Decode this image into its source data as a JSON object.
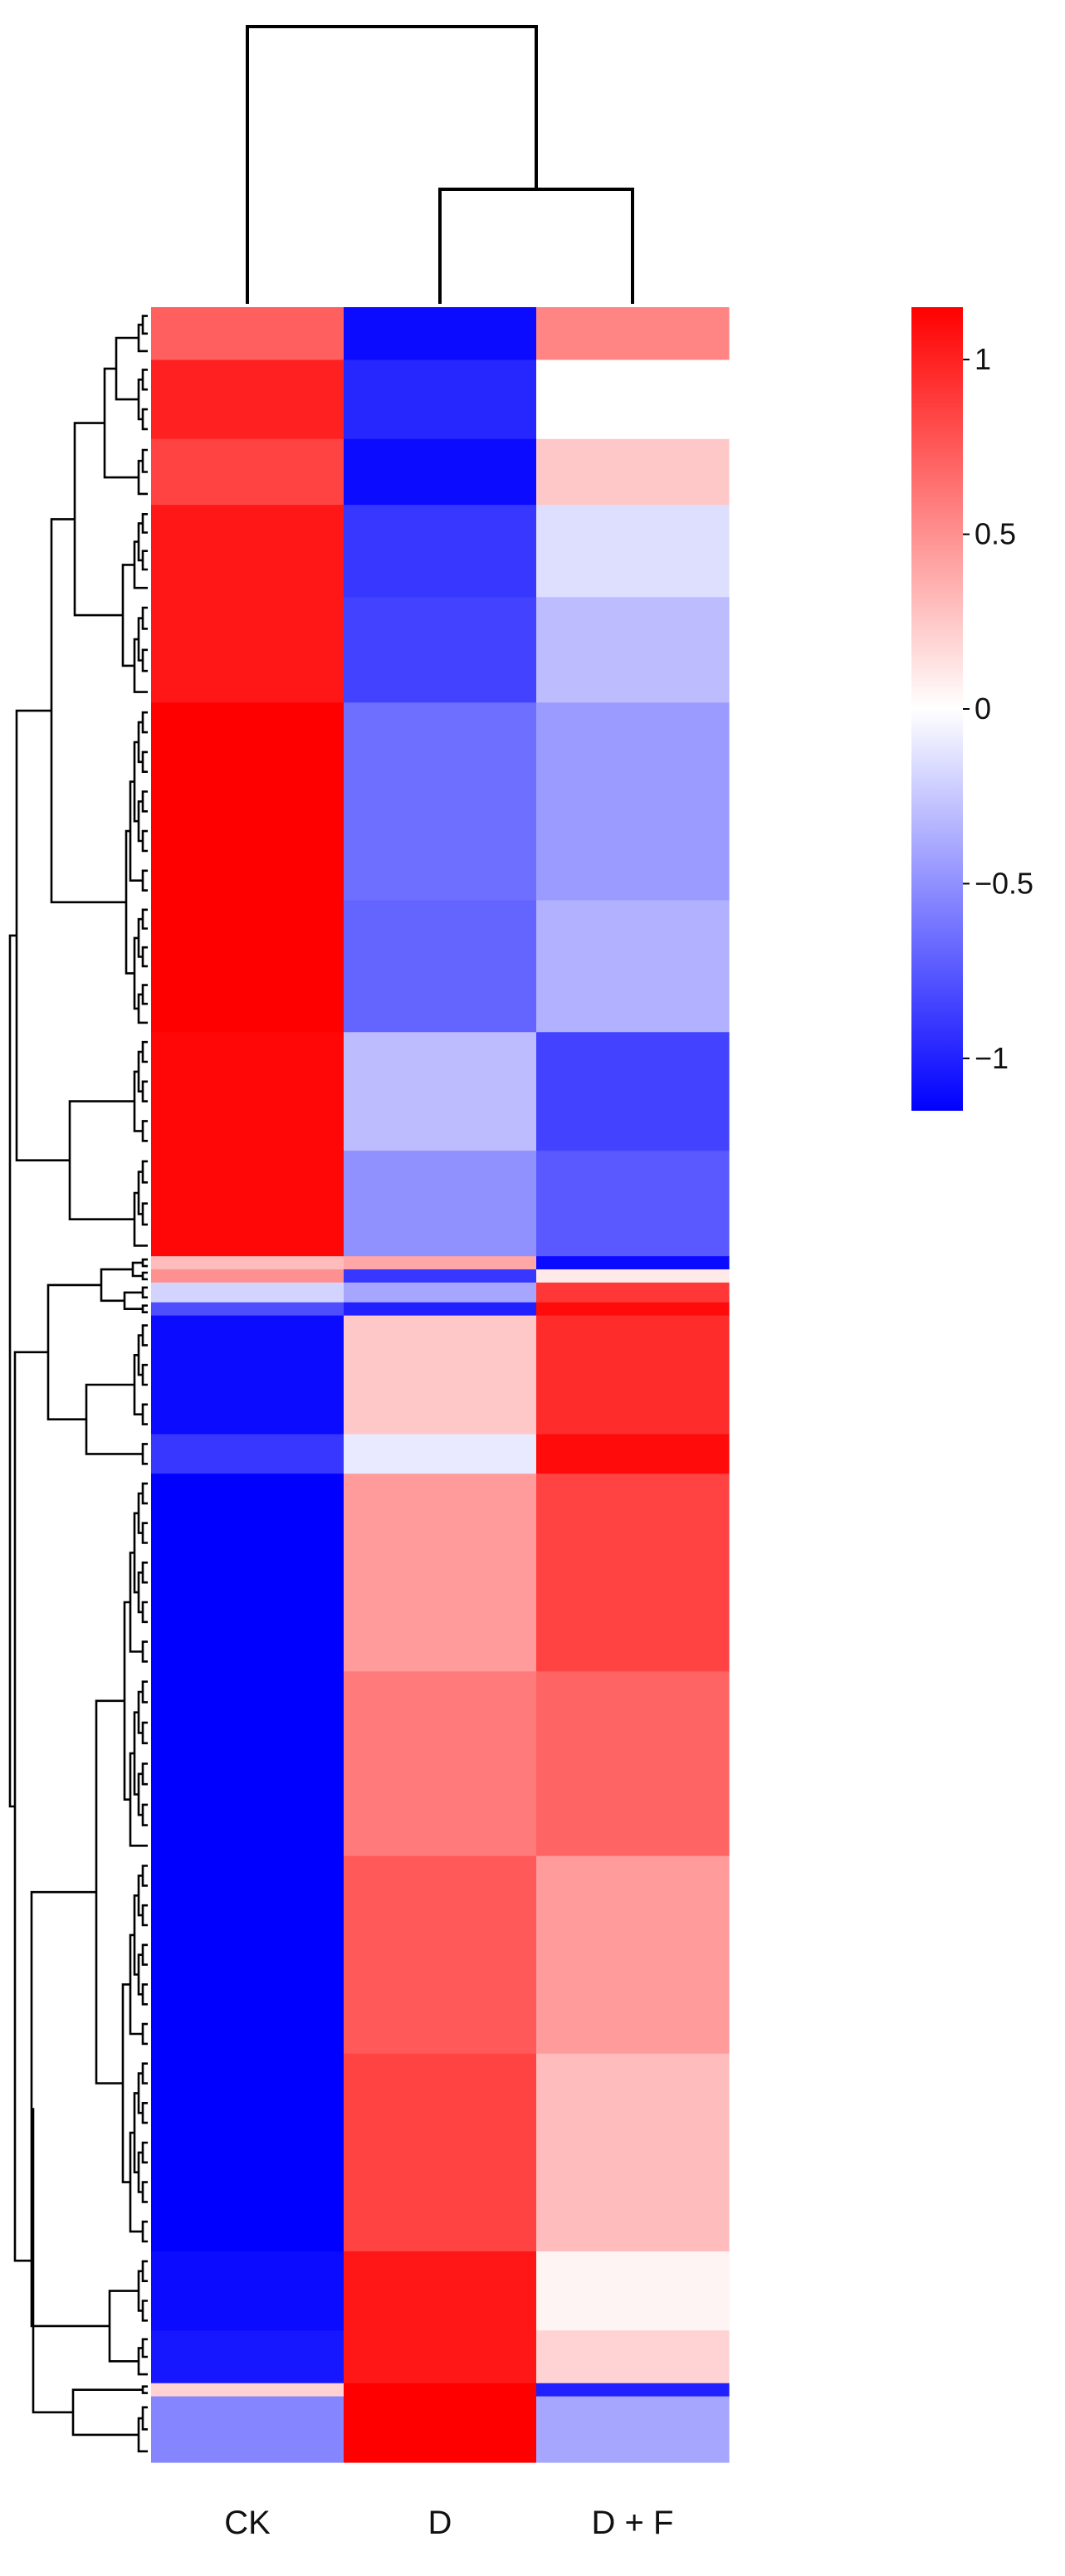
{
  "chart_data": {
    "type": "heatmap",
    "title": "",
    "xlabel": "",
    "ylabel": "",
    "columns": [
      "CK",
      "D",
      "D + F"
    ],
    "column_order": [
      "CK",
      "D",
      "D + F"
    ],
    "column_dendrogram": {
      "merges": [
        [
          "D",
          "D + F"
        ],
        [
          "CK",
          "D|D + F"
        ]
      ]
    },
    "row_dendrogram": true,
    "colorbar": {
      "min": -1.15,
      "max": 1.15,
      "ticks": [
        1,
        0.5,
        0,
        -0.5,
        -1
      ],
      "tick_labels": [
        "1",
        "0.5",
        "0",
        "−0.5",
        "−1"
      ],
      "colors": {
        "low": "#0000ff",
        "mid": "#ffffff",
        "high": "#ff0000"
      }
    },
    "row_blocks": [
      {
        "rows": 8,
        "values": [
          0.72,
          -1.1,
          0.55
        ]
      },
      {
        "rows": 12,
        "values": [
          1.0,
          -0.98,
          0.0
        ]
      },
      {
        "rows": 10,
        "values": [
          0.85,
          -1.1,
          0.25
        ]
      },
      {
        "rows": 14,
        "values": [
          1.05,
          -0.9,
          -0.15
        ]
      },
      {
        "rows": 16,
        "values": [
          1.05,
          -0.85,
          -0.3
        ]
      },
      {
        "rows": 30,
        "values": [
          1.15,
          -0.65,
          -0.45
        ]
      },
      {
        "rows": 20,
        "values": [
          1.15,
          -0.7,
          -0.35
        ]
      },
      {
        "rows": 18,
        "values": [
          1.12,
          -0.3,
          -0.85
        ]
      },
      {
        "rows": 16,
        "values": [
          1.12,
          -0.5,
          -0.75
        ]
      },
      {
        "rows": 2,
        "values": [
          0.3,
          0.4,
          -1.1
        ]
      },
      {
        "rows": 2,
        "values": [
          0.5,
          -0.9,
          0.1
        ]
      },
      {
        "rows": 3,
        "values": [
          -0.2,
          -0.4,
          0.9
        ]
      },
      {
        "rows": 2,
        "values": [
          -0.8,
          -1.0,
          1.1
        ]
      },
      {
        "rows": 18,
        "values": [
          -1.1,
          0.25,
          0.95
        ]
      },
      {
        "rows": 6,
        "values": [
          -0.9,
          -0.1,
          1.1
        ]
      },
      {
        "rows": 30,
        "values": [
          -1.15,
          0.45,
          0.85
        ]
      },
      {
        "rows": 28,
        "values": [
          -1.15,
          0.6,
          0.7
        ]
      },
      {
        "rows": 30,
        "values": [
          -1.15,
          0.75,
          0.45
        ]
      },
      {
        "rows": 30,
        "values": [
          -1.15,
          0.85,
          0.3
        ]
      },
      {
        "rows": 12,
        "values": [
          -1.1,
          1.05,
          0.05
        ]
      },
      {
        "rows": 8,
        "values": [
          -1.05,
          1.05,
          0.2
        ]
      },
      {
        "rows": 2,
        "values": [
          0.2,
          1.15,
          -1.0
        ]
      },
      {
        "rows": 10,
        "values": [
          -0.55,
          1.15,
          -0.4
        ]
      }
    ]
  }
}
